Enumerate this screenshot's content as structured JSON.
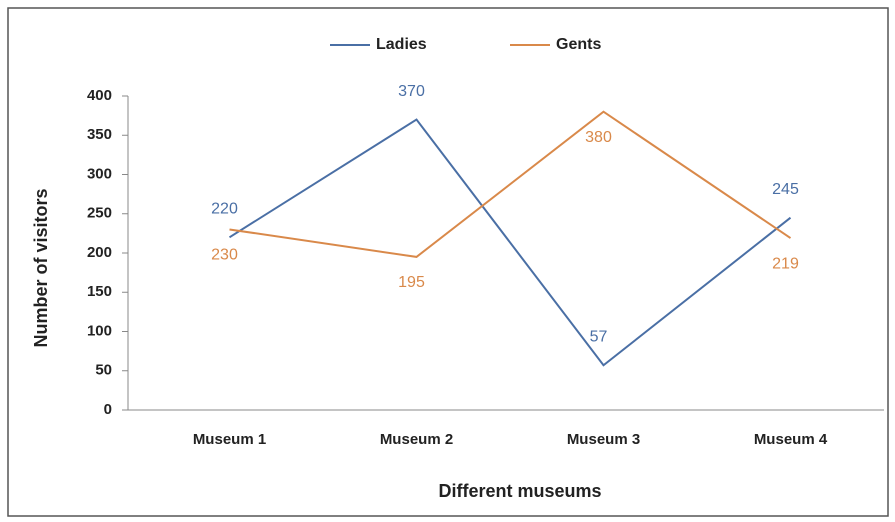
{
  "chart_data": {
    "type": "line",
    "xlabel": "Different museums",
    "ylabel": "Number of visitors",
    "categories": [
      "Museum 1",
      "Museum 2",
      "Museum 3",
      "Museum 4"
    ],
    "series": [
      {
        "name": "Ladies",
        "color": "#4a6fa5",
        "values": [
          220,
          370,
          57,
          245
        ]
      },
      {
        "name": "Gents",
        "color": "#d9894a",
        "values": [
          230,
          195,
          380,
          219
        ]
      }
    ],
    "ylim": [
      0,
      400
    ],
    "yticks": [
      0,
      50,
      100,
      150,
      200,
      250,
      300,
      350,
      400
    ],
    "grid": false,
    "legend": "top"
  }
}
